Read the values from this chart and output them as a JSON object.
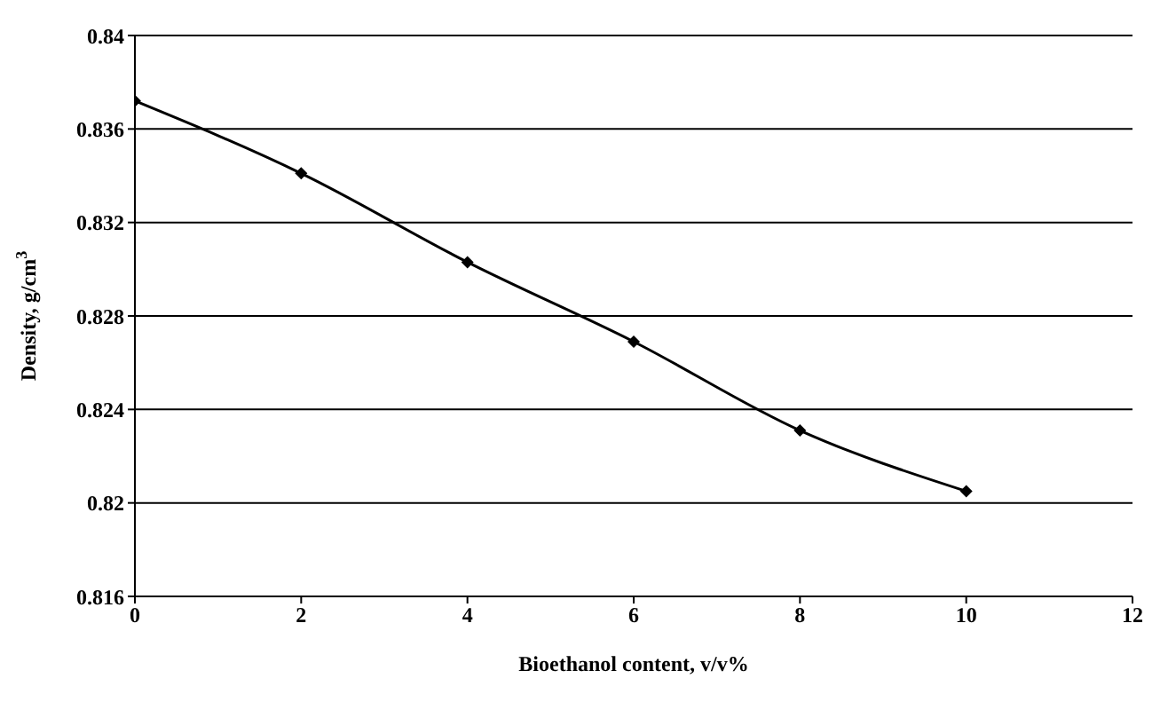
{
  "chart_data": {
    "type": "line",
    "xlabel": "Bioethanol content, v/v%",
    "ylabel": "Density, g/cm$^{3}$",
    "x": [
      0,
      2,
      4,
      6,
      8,
      10
    ],
    "series": [
      {
        "color": "#000000",
        "values": [
          0.8372,
          0.8341,
          0.8303,
          0.8269,
          0.8231,
          0.8205
        ]
      }
    ],
    "xlim": [
      0,
      12
    ],
    "xticks": [
      0,
      2,
      4,
      6,
      8,
      10,
      12
    ],
    "ylim": [
      0.816,
      0.84
    ],
    "yticks": [
      0.816,
      0.82,
      0.824,
      0.828,
      0.832,
      0.836,
      0.84
    ],
    "grid": "y",
    "legend": false,
    "marker": "diamond",
    "line_style": "solid"
  }
}
